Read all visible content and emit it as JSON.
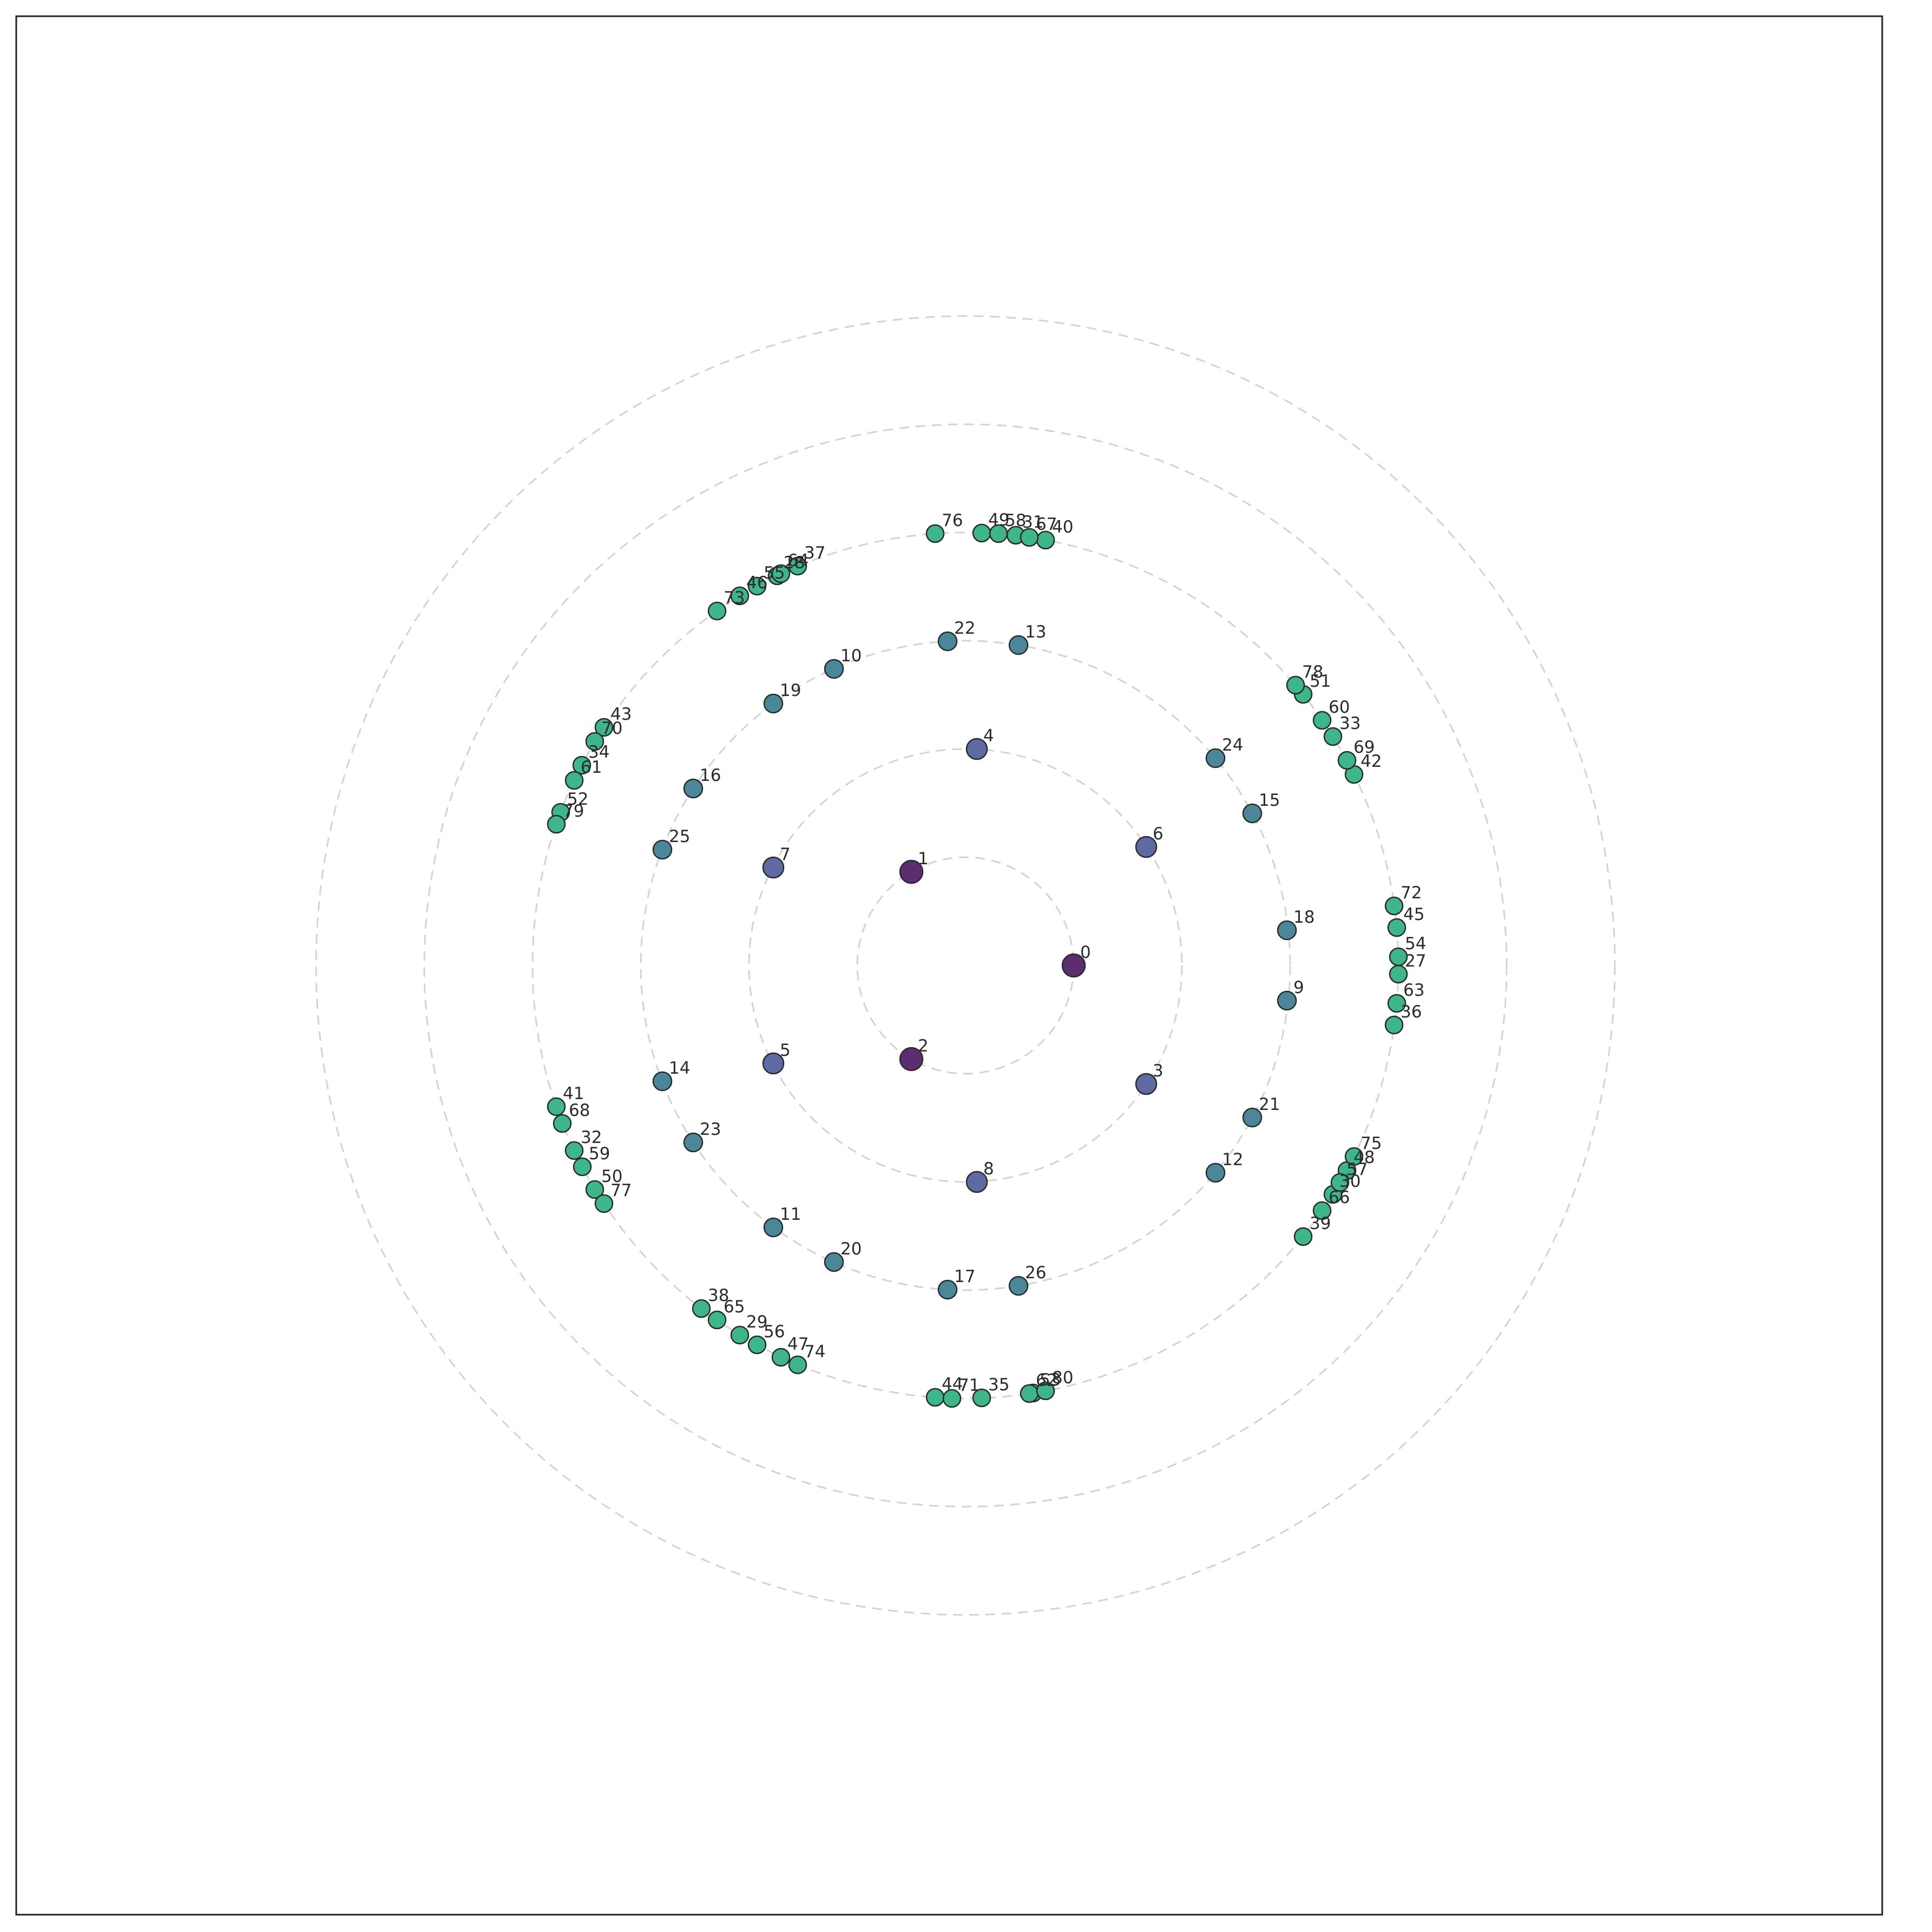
{
  "chart_data": {
    "type": "scatter",
    "title": "",
    "xlabel": "",
    "ylabel": "",
    "grid": true,
    "legend": "none",
    "axes_visible": false,
    "xlim": [
      -1.75,
      1.75
    ],
    "ylim": [
      -1.75,
      1.75
    ],
    "ring_radii": [
      0.2,
      0.4,
      0.6,
      0.8,
      1.0,
      1.2
    ],
    "level_colors": [
      "#5c2d6f",
      "#5e6aa2",
      "#4b8799",
      "#3fb58a"
    ],
    "points": [
      {
        "label": "0",
        "level": 0,
        "x": 0.2,
        "y": 0.0
      },
      {
        "label": "1",
        "level": 0,
        "x": -0.1,
        "y": 0.173
      },
      {
        "label": "2",
        "level": 0,
        "x": -0.1,
        "y": -0.173
      },
      {
        "label": "3",
        "level": 1,
        "x": 0.334,
        "y": -0.219
      },
      {
        "label": "4",
        "level": 1,
        "x": 0.021,
        "y": 0.4
      },
      {
        "label": "5",
        "level": 1,
        "x": -0.355,
        "y": -0.181
      },
      {
        "label": "6",
        "level": 1,
        "x": 0.334,
        "y": 0.219
      },
      {
        "label": "7",
        "level": 1,
        "x": -0.355,
        "y": 0.181
      },
      {
        "label": "8",
        "level": 1,
        "x": 0.021,
        "y": -0.4
      },
      {
        "label": "9",
        "level": 2,
        "x": 0.594,
        "y": -0.065
      },
      {
        "label": "10",
        "level": 2,
        "x": -0.243,
        "y": 0.548
      },
      {
        "label": "11",
        "level": 2,
        "x": -0.355,
        "y": -0.484
      },
      {
        "label": "12",
        "level": 2,
        "x": 0.462,
        "y": -0.383
      },
      {
        "label": "13",
        "level": 2,
        "x": 0.098,
        "y": 0.592
      },
      {
        "label": "14",
        "level": 2,
        "x": -0.56,
        "y": -0.214
      },
      {
        "label": "15",
        "level": 2,
        "x": 0.53,
        "y": 0.281
      },
      {
        "label": "16",
        "level": 2,
        "x": -0.503,
        "y": 0.327
      },
      {
        "label": "17",
        "level": 2,
        "x": -0.033,
        "y": -0.599
      },
      {
        "label": "18",
        "level": 2,
        "x": 0.594,
        "y": 0.065
      },
      {
        "label": "19",
        "level": 2,
        "x": -0.355,
        "y": 0.484
      },
      {
        "label": "20",
        "level": 2,
        "x": -0.243,
        "y": -0.548
      },
      {
        "label": "21",
        "level": 2,
        "x": 0.53,
        "y": -0.281
      },
      {
        "label": "22",
        "level": 2,
        "x": -0.033,
        "y": 0.599
      },
      {
        "label": "23",
        "level": 2,
        "x": -0.503,
        "y": -0.327
      },
      {
        "label": "24",
        "level": 2,
        "x": 0.462,
        "y": 0.383
      },
      {
        "label": "25",
        "level": 2,
        "x": -0.56,
        "y": 0.214
      },
      {
        "label": "26",
        "level": 2,
        "x": 0.098,
        "y": -0.592
      },
      {
        "label": "27",
        "level": 3,
        "x": 0.8,
        "y": -0.016
      },
      {
        "label": "28",
        "level": 3,
        "x": -0.348,
        "y": 0.72
      },
      {
        "label": "29",
        "level": 3,
        "x": -0.417,
        "y": -0.683
      },
      {
        "label": "30",
        "level": 3,
        "x": 0.679,
        "y": -0.423
      },
      {
        "label": "31",
        "level": 3,
        "x": 0.093,
        "y": 0.795
      },
      {
        "label": "32",
        "level": 3,
        "x": -0.723,
        "y": -0.342
      },
      {
        "label": "33",
        "level": 3,
        "x": 0.679,
        "y": 0.423
      },
      {
        "label": "34",
        "level": 3,
        "x": -0.709,
        "y": 0.37
      },
      {
        "label": "35",
        "level": 3,
        "x": 0.03,
        "y": -0.799
      },
      {
        "label": "36",
        "level": 3,
        "x": 0.792,
        "y": -0.11
      },
      {
        "label": "37",
        "level": 3,
        "x": -0.31,
        "y": 0.738
      },
      {
        "label": "38",
        "level": 3,
        "x": -0.488,
        "y": -0.634
      },
      {
        "label": "39",
        "level": 3,
        "x": 0.624,
        "y": -0.501
      },
      {
        "label": "40",
        "level": 3,
        "x": 0.148,
        "y": 0.786
      },
      {
        "label": "41",
        "level": 3,
        "x": -0.756,
        "y": -0.261
      },
      {
        "label": "42",
        "level": 3,
        "x": 0.718,
        "y": 0.353
      },
      {
        "label": "43",
        "level": 3,
        "x": -0.668,
        "y": 0.44
      },
      {
        "label": "44",
        "level": 3,
        "x": -0.056,
        "y": -0.798
      },
      {
        "label": "45",
        "level": 3,
        "x": 0.797,
        "y": 0.07
      },
      {
        "label": "46",
        "level": 3,
        "x": -0.417,
        "y": 0.683
      },
      {
        "label": "47",
        "level": 3,
        "x": -0.341,
        "y": -0.724
      },
      {
        "label": "48",
        "level": 3,
        "x": 0.705,
        "y": -0.379
      },
      {
        "label": "49",
        "level": 3,
        "x": 0.03,
        "y": 0.799
      },
      {
        "label": "50",
        "level": 3,
        "x": -0.685,
        "y": -0.414
      },
      {
        "label": "51",
        "level": 3,
        "x": 0.624,
        "y": 0.501
      },
      {
        "label": "52",
        "level": 3,
        "x": -0.748,
        "y": 0.283
      },
      {
        "label": "53",
        "level": 3,
        "x": 0.125,
        "y": -0.79
      },
      {
        "label": "54",
        "level": 3,
        "x": 0.8,
        "y": 0.016
      },
      {
        "label": "55",
        "level": 3,
        "x": -0.385,
        "y": 0.701
      },
      {
        "label": "56",
        "level": 3,
        "x": -0.385,
        "y": -0.701
      },
      {
        "label": "57",
        "level": 3,
        "x": 0.692,
        "y": -0.401
      },
      {
        "label": "58",
        "level": 3,
        "x": 0.061,
        "y": 0.798
      },
      {
        "label": "59",
        "level": 3,
        "x": -0.708,
        "y": -0.372
      },
      {
        "label": "60",
        "level": 3,
        "x": 0.659,
        "y": 0.453
      },
      {
        "label": "61",
        "level": 3,
        "x": -0.723,
        "y": 0.342
      },
      {
        "label": "62",
        "level": 3,
        "x": 0.118,
        "y": -0.791
      },
      {
        "label": "63",
        "level": 3,
        "x": 0.797,
        "y": -0.07
      },
      {
        "label": "64",
        "level": 3,
        "x": -0.341,
        "y": 0.724
      },
      {
        "label": "65",
        "level": 3,
        "x": -0.459,
        "y": -0.655
      },
      {
        "label": "66",
        "level": 3,
        "x": 0.659,
        "y": -0.453
      },
      {
        "label": "67",
        "level": 3,
        "x": 0.118,
        "y": 0.791
      },
      {
        "label": "68",
        "level": 3,
        "x": -0.745,
        "y": -0.292
      },
      {
        "label": "69",
        "level": 3,
        "x": 0.705,
        "y": 0.379
      },
      {
        "label": "70",
        "level": 3,
        "x": -0.685,
        "y": 0.414
      },
      {
        "label": "71",
        "level": 3,
        "x": -0.025,
        "y": -0.8
      },
      {
        "label": "72",
        "level": 3,
        "x": 0.792,
        "y": 0.11
      },
      {
        "label": "73",
        "level": 3,
        "x": -0.459,
        "y": 0.655
      },
      {
        "label": "74",
        "level": 3,
        "x": -0.31,
        "y": -0.738
      },
      {
        "label": "75",
        "level": 3,
        "x": 0.718,
        "y": -0.353
      },
      {
        "label": "76",
        "level": 3,
        "x": -0.056,
        "y": 0.798
      },
      {
        "label": "77",
        "level": 3,
        "x": -0.668,
        "y": -0.44
      },
      {
        "label": "78",
        "level": 3,
        "x": 0.61,
        "y": 0.518
      },
      {
        "label": "79",
        "level": 3,
        "x": -0.756,
        "y": 0.261
      },
      {
        "label": "80",
        "level": 3,
        "x": 0.148,
        "y": -0.786
      }
    ]
  }
}
